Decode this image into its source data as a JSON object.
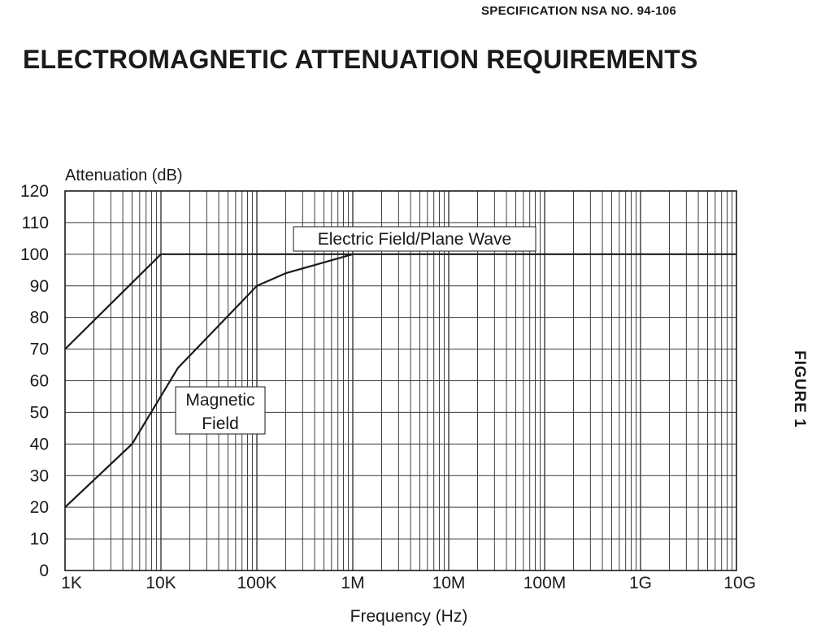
{
  "header": {
    "spec_number": "SPECIFICATION NSA NO.  94-106",
    "title": "ELECTROMAGNETIC ATTENUATION REQUIREMENTS",
    "figure_label": "FIGURE 1"
  },
  "chart_data": {
    "type": "line",
    "title": "ELECTROMAGNETIC ATTENUATION REQUIREMENTS",
    "xlabel": "Frequency (Hz)",
    "ylabel": "Attenuation (dB)",
    "x_scale": "log",
    "xlim": [
      1000,
      10000000000
    ],
    "ylim": [
      0,
      120
    ],
    "x_ticks": [
      {
        "value": 1000,
        "label": "1K"
      },
      {
        "value": 10000,
        "label": "10K"
      },
      {
        "value": 100000,
        "label": "100K"
      },
      {
        "value": 1000000,
        "label": "1M"
      },
      {
        "value": 10000000,
        "label": "10M"
      },
      {
        "value": 100000000,
        "label": "100M"
      },
      {
        "value": 1000000000,
        "label": "1G"
      },
      {
        "value": 10000000000,
        "label": "10G"
      }
    ],
    "y_ticks": [
      0,
      10,
      20,
      30,
      40,
      50,
      60,
      70,
      80,
      90,
      100,
      110,
      120
    ],
    "grid": true,
    "series": [
      {
        "name": "Electric Field/Plane Wave",
        "x": [
          1000,
          10000,
          10000000000
        ],
        "y": [
          70,
          100,
          100
        ]
      },
      {
        "name": "Magnetic Field",
        "x": [
          1000,
          5000,
          15000,
          100000,
          200000,
          1000000
        ],
        "y": [
          20,
          40,
          64,
          90,
          94,
          100
        ]
      }
    ],
    "annotations": [
      {
        "text": "Electric Field/Plane Wave",
        "series": "Electric Field/Plane Wave"
      },
      {
        "text": "Magnetic\nField",
        "series": "Magnetic Field"
      }
    ]
  }
}
